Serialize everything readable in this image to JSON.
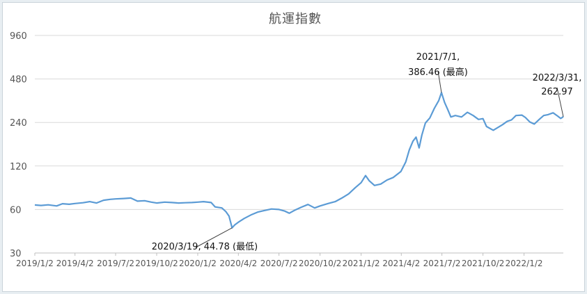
{
  "chart_data": {
    "type": "line",
    "title": "航運指數",
    "xlabel": "",
    "ylabel": "",
    "y_scale": "log",
    "ylim": [
      30,
      960
    ],
    "y_ticks": [
      {
        "value": 30,
        "label": "30"
      },
      {
        "value": 60,
        "label": "60"
      },
      {
        "value": 120,
        "label": "120"
      },
      {
        "value": 240,
        "label": "240"
      },
      {
        "value": 480,
        "label": "480"
      },
      {
        "value": 960,
        "label": "960"
      }
    ],
    "xlim": [
      "2019-01-02",
      "2022-03-31"
    ],
    "x_ticks": [
      {
        "date": "2019-01-02",
        "label": "2019/1/2"
      },
      {
        "date": "2019-04-02",
        "label": "2019/4/2"
      },
      {
        "date": "2019-07-02",
        "label": "2019/7/2"
      },
      {
        "date": "2019-10-02",
        "label": "2019/10/2"
      },
      {
        "date": "2020-01-02",
        "label": "2020/1/2"
      },
      {
        "date": "2020-04-02",
        "label": "2020/4/2"
      },
      {
        "date": "2020-07-02",
        "label": "2020/7/2"
      },
      {
        "date": "2020-10-02",
        "label": "2020/10/2"
      },
      {
        "date": "2021-01-02",
        "label": "2021/1/2"
      },
      {
        "date": "2021-04-02",
        "label": "2021/4/2"
      },
      {
        "date": "2021-07-02",
        "label": "2021/7/2"
      },
      {
        "date": "2021-10-02",
        "label": "2021/10/2"
      },
      {
        "date": "2022-01-02",
        "label": "2022/1/2"
      }
    ],
    "grid": true,
    "legend": "none",
    "line_color": "#5b9bd5",
    "series": [
      {
        "points": [
          [
            "2019-01-02",
            64.5
          ],
          [
            "2019-01-16",
            64.0
          ],
          [
            "2019-02-01",
            64.6
          ],
          [
            "2019-02-20",
            63.5
          ],
          [
            "2019-03-05",
            65.8
          ],
          [
            "2019-03-20",
            65.2
          ],
          [
            "2019-04-02",
            66.0
          ],
          [
            "2019-04-20",
            66.8
          ],
          [
            "2019-05-05",
            68.0
          ],
          [
            "2019-05-20",
            66.5
          ],
          [
            "2019-06-05",
            69.5
          ],
          [
            "2019-06-20",
            70.5
          ],
          [
            "2019-07-02",
            71.0
          ],
          [
            "2019-07-20",
            71.5
          ],
          [
            "2019-08-05",
            72.0
          ],
          [
            "2019-08-20",
            68.5
          ],
          [
            "2019-09-05",
            69.0
          ],
          [
            "2019-09-20",
            67.5
          ],
          [
            "2019-10-02",
            66.5
          ],
          [
            "2019-10-20",
            67.5
          ],
          [
            "2019-11-05",
            67.0
          ],
          [
            "2019-11-20",
            66.5
          ],
          [
            "2019-12-05",
            66.8
          ],
          [
            "2019-12-20",
            67.0
          ],
          [
            "2020-01-02",
            67.5
          ],
          [
            "2020-01-15",
            68.0
          ],
          [
            "2020-02-01",
            67.0
          ],
          [
            "2020-02-10",
            62.5
          ],
          [
            "2020-02-25",
            61.5
          ],
          [
            "2020-03-05",
            58.0
          ],
          [
            "2020-03-12",
            54.0
          ],
          [
            "2020-03-19",
            44.78
          ],
          [
            "2020-03-25",
            47.0
          ],
          [
            "2020-04-02",
            49.0
          ],
          [
            "2020-04-15",
            52.0
          ],
          [
            "2020-04-30",
            55.0
          ],
          [
            "2020-05-15",
            57.5
          ],
          [
            "2020-05-30",
            59.0
          ],
          [
            "2020-06-15",
            60.5
          ],
          [
            "2020-07-02",
            60.0
          ],
          [
            "2020-07-15",
            58.5
          ],
          [
            "2020-07-25",
            56.5
          ],
          [
            "2020-08-05",
            59.0
          ],
          [
            "2020-08-20",
            62.0
          ],
          [
            "2020-09-05",
            65.0
          ],
          [
            "2020-09-20",
            61.5
          ],
          [
            "2020-10-02",
            63.5
          ],
          [
            "2020-10-20",
            66.0
          ],
          [
            "2020-11-05",
            68.0
          ],
          [
            "2020-11-20",
            72.0
          ],
          [
            "2020-12-05",
            77.0
          ],
          [
            "2020-12-20",
            85.0
          ],
          [
            "2021-01-02",
            92.0
          ],
          [
            "2021-01-12",
            103.0
          ],
          [
            "2021-01-20",
            95.0
          ],
          [
            "2021-02-01",
            88.0
          ],
          [
            "2021-02-15",
            90.0
          ],
          [
            "2021-03-01",
            96.0
          ],
          [
            "2021-03-15",
            100.0
          ],
          [
            "2021-04-01",
            110.0
          ],
          [
            "2021-04-12",
            128.0
          ],
          [
            "2021-04-20",
            155.0
          ],
          [
            "2021-04-28",
            178.0
          ],
          [
            "2021-05-05",
            190.0
          ],
          [
            "2021-05-12",
            160.0
          ],
          [
            "2021-05-18",
            196.0
          ],
          [
            "2021-05-26",
            238.0
          ],
          [
            "2021-06-05",
            258.0
          ],
          [
            "2021-06-15",
            300.0
          ],
          [
            "2021-06-25",
            340.0
          ],
          [
            "2021-07-01",
            386.46
          ],
          [
            "2021-07-08",
            330.0
          ],
          [
            "2021-07-15",
            295.0
          ],
          [
            "2021-07-22",
            262.0
          ],
          [
            "2021-08-01",
            268.0
          ],
          [
            "2021-08-15",
            262.0
          ],
          [
            "2021-08-28",
            282.0
          ],
          [
            "2021-09-10",
            268.0
          ],
          [
            "2021-09-22",
            252.0
          ],
          [
            "2021-10-02",
            255.0
          ],
          [
            "2021-10-10",
            225.0
          ],
          [
            "2021-10-25",
            212.0
          ],
          [
            "2021-11-05",
            222.0
          ],
          [
            "2021-11-15",
            232.0
          ],
          [
            "2021-11-25",
            244.0
          ],
          [
            "2021-12-05",
            250.0
          ],
          [
            "2021-12-15",
            268.0
          ],
          [
            "2021-12-28",
            270.0
          ],
          [
            "2022-01-05",
            260.0
          ],
          [
            "2022-01-15",
            242.0
          ],
          [
            "2022-01-25",
            234.0
          ],
          [
            "2022-02-05",
            252.0
          ],
          [
            "2022-02-15",
            268.0
          ],
          [
            "2022-02-25",
            272.0
          ],
          [
            "2022-03-08",
            280.0
          ],
          [
            "2022-03-18",
            266.0
          ],
          [
            "2022-03-25",
            256.0
          ],
          [
            "2022-03-31",
            262.97
          ]
        ]
      }
    ],
    "annotations": [
      {
        "date": "2020-03-19",
        "value": 44.78,
        "lines": [
          "2020/3/19, 44.78 (最低)"
        ]
      },
      {
        "date": "2021-07-01",
        "value": 386.46,
        "lines": [
          "2021/7/1,",
          "386.46 (最高)"
        ]
      },
      {
        "date": "2022-03-31",
        "value": 262.97,
        "lines": [
          "2022/3/31,",
          "262.97"
        ]
      }
    ]
  }
}
